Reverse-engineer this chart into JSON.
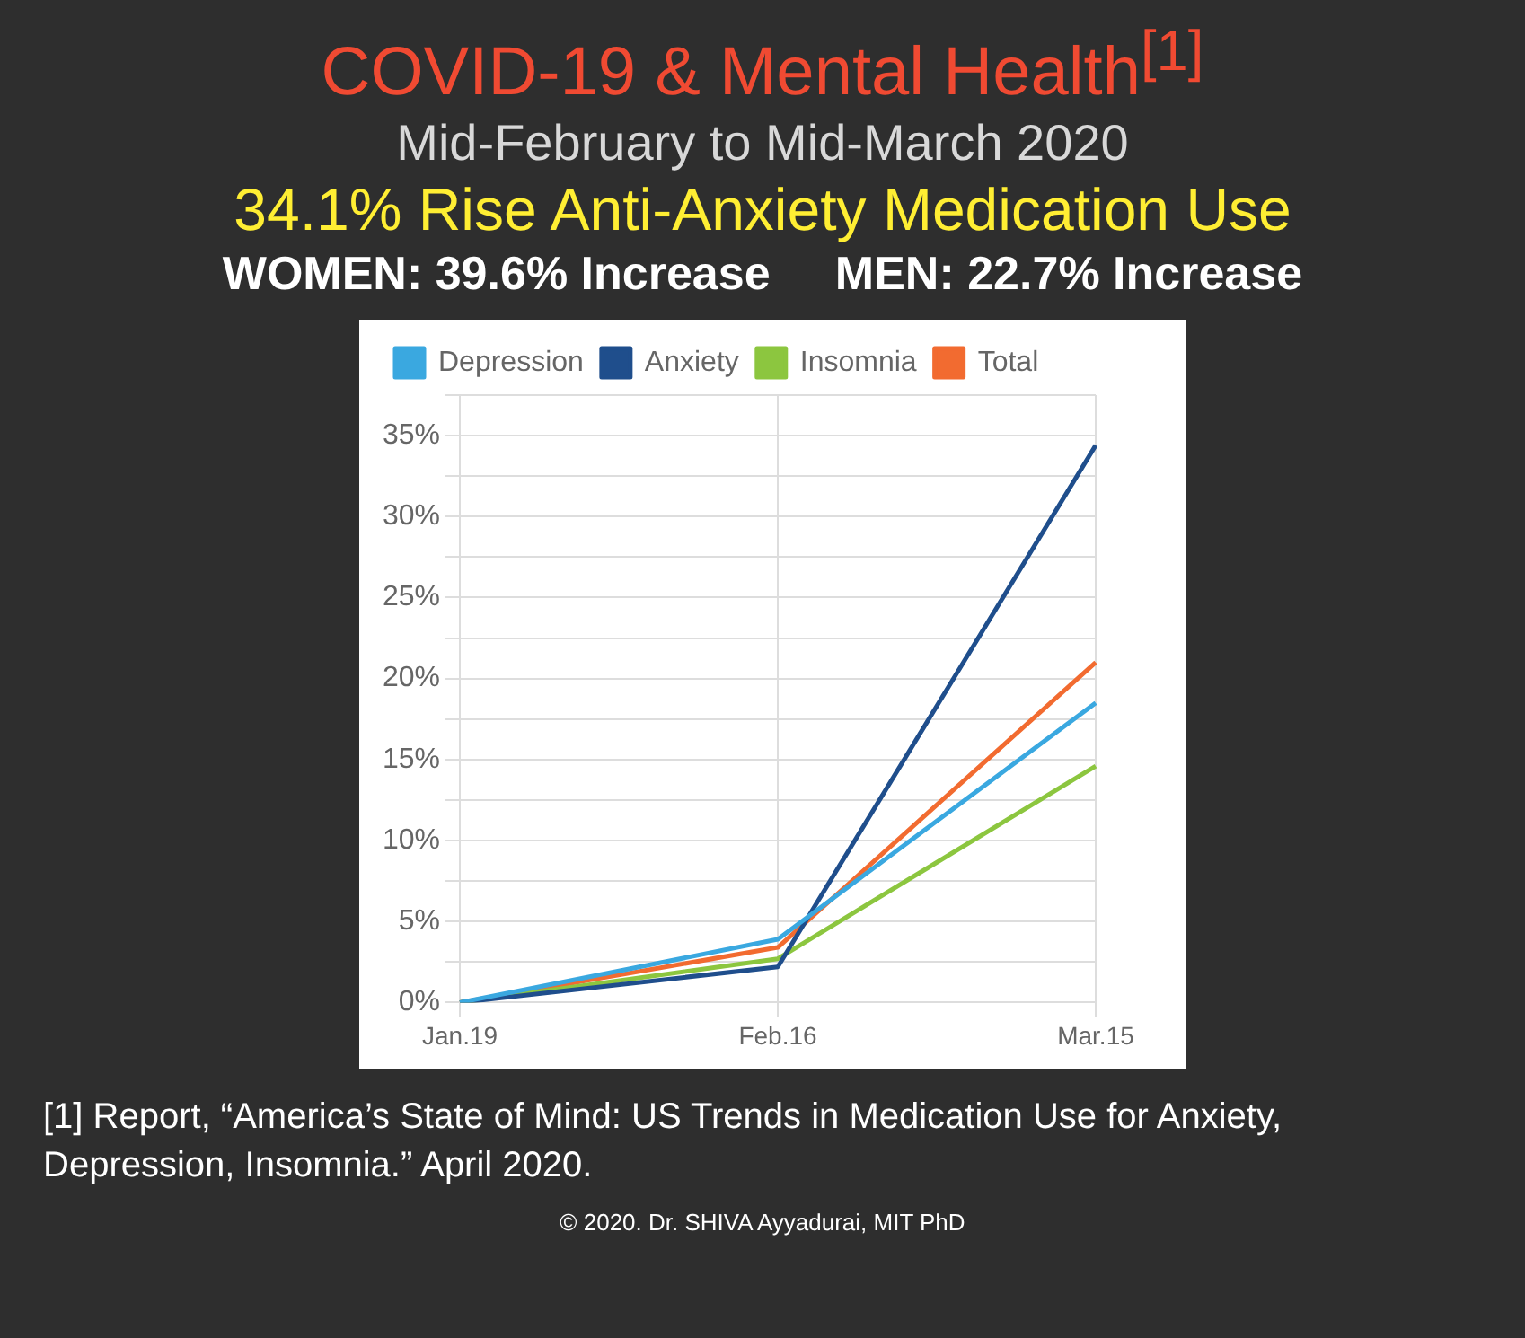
{
  "chart_data": {
    "type": "line",
    "title": "COVID-19 & Mental Health$^{[1]}$",
    "subtitle": "Mid-February to Mid-March 2020",
    "annotations": [
      "34.1% Rise Anti-Anxiety Medication Use",
      "WOMEN: 39.6% Increase     MEN: 22.7% Increase",
      "[1] Report, “America’s State of Mind: US Trends in Medication Use for Anxiety, Depression, Insomnia.” April 2020.",
      "© 2020. Dr. SHIVA Ayyadurai, MIT PhD"
    ],
    "categories": [
      "Jan.19",
      "Feb.16",
      "Mar.15"
    ],
    "series": [
      {
        "name": "Depression",
        "color": "#3aa8e0",
        "values": [
          0,
          3.9,
          18.5
        ]
      },
      {
        "name": "Anxiety",
        "color": "#1f4e8c",
        "values": [
          0,
          2.2,
          34.4
        ]
      },
      {
        "name": "Insomnia",
        "color": "#8cc63f",
        "values": [
          0,
          2.7,
          14.6
        ]
      },
      {
        "name": "Total",
        "color": "#f26b30",
        "values": [
          0,
          3.4,
          21.0
        ]
      }
    ],
    "ylim": [
      0,
      37.5
    ],
    "yticks": [
      {
        "value": 0,
        "label": "0%"
      },
      {
        "value": 2.5,
        "label": null
      },
      {
        "value": 5,
        "label": "5%"
      },
      {
        "value": 7.5,
        "label": null
      },
      {
        "value": 10,
        "label": "10%"
      },
      {
        "value": 12.5,
        "label": null
      },
      {
        "value": 15,
        "label": "15%"
      },
      {
        "value": 17.5,
        "label": null
      },
      {
        "value": 20,
        "label": "20%"
      },
      {
        "value": 22.5,
        "label": null
      },
      {
        "value": 25,
        "label": "25%"
      },
      {
        "value": 27.5,
        "label": null
      },
      {
        "value": 30,
        "label": "30%"
      },
      {
        "value": 32.5,
        "label": null
      },
      {
        "value": 35,
        "label": "35%"
      },
      {
        "value": 37.5,
        "label": null
      }
    ],
    "grid": true,
    "legend": "top",
    "marker": "none",
    "line_style": "solid"
  }
}
